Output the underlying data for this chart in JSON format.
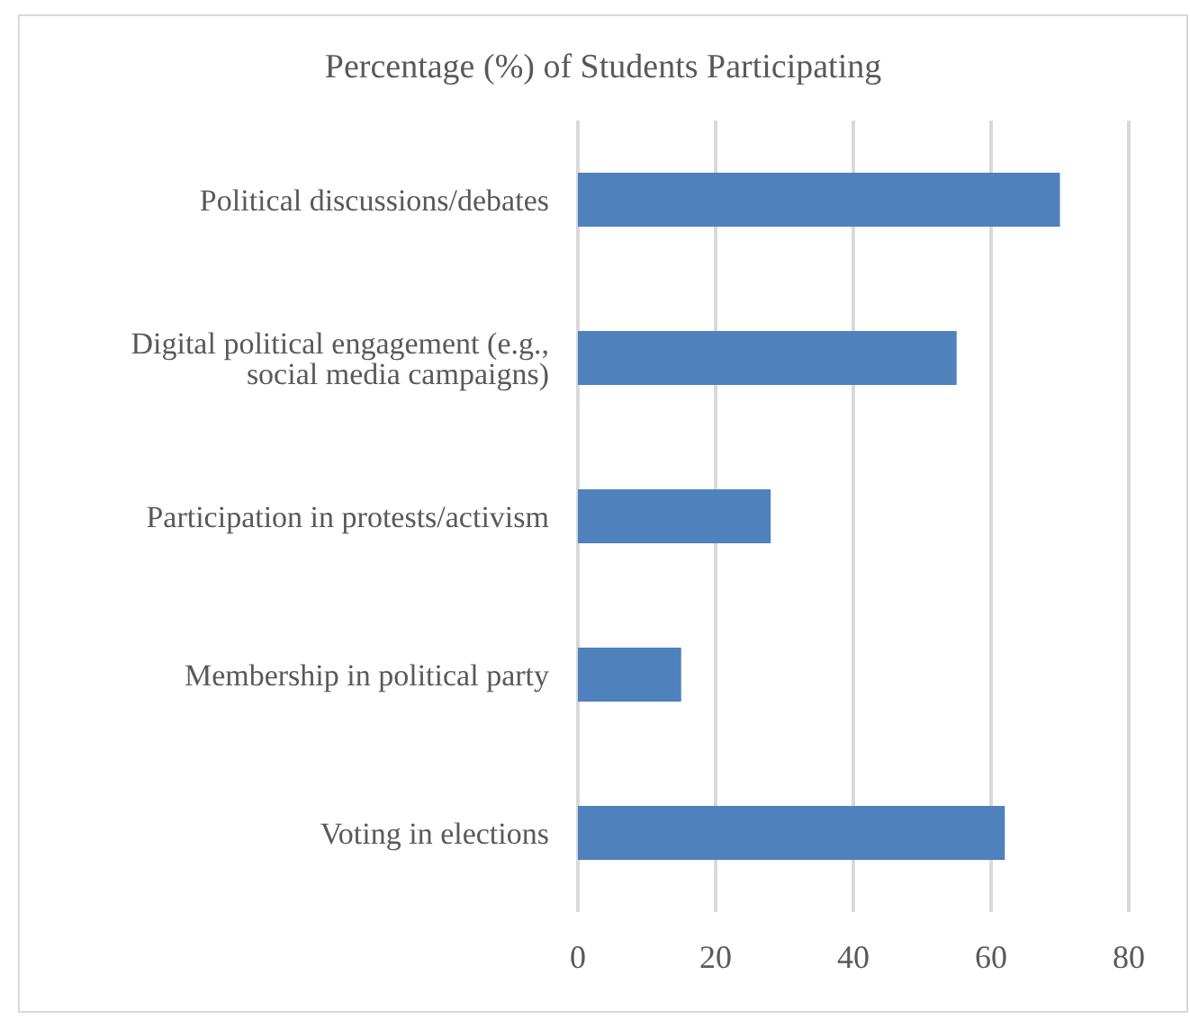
{
  "chart_data": {
    "type": "bar",
    "orientation": "horizontal",
    "title": "Percentage (%) of Students Participating",
    "categories": [
      "Political discussions/debates",
      "Digital political engagement (e.g., social media campaigns)",
      "Participation in protests/activism",
      "Membership in political party",
      "Voting in elections"
    ],
    "values": [
      70,
      55,
      28,
      15,
      62
    ],
    "color": "#4f81bd",
    "xlim": [
      0,
      80
    ],
    "xticks": [
      0,
      20,
      40,
      60,
      80
    ],
    "grid": "x"
  }
}
